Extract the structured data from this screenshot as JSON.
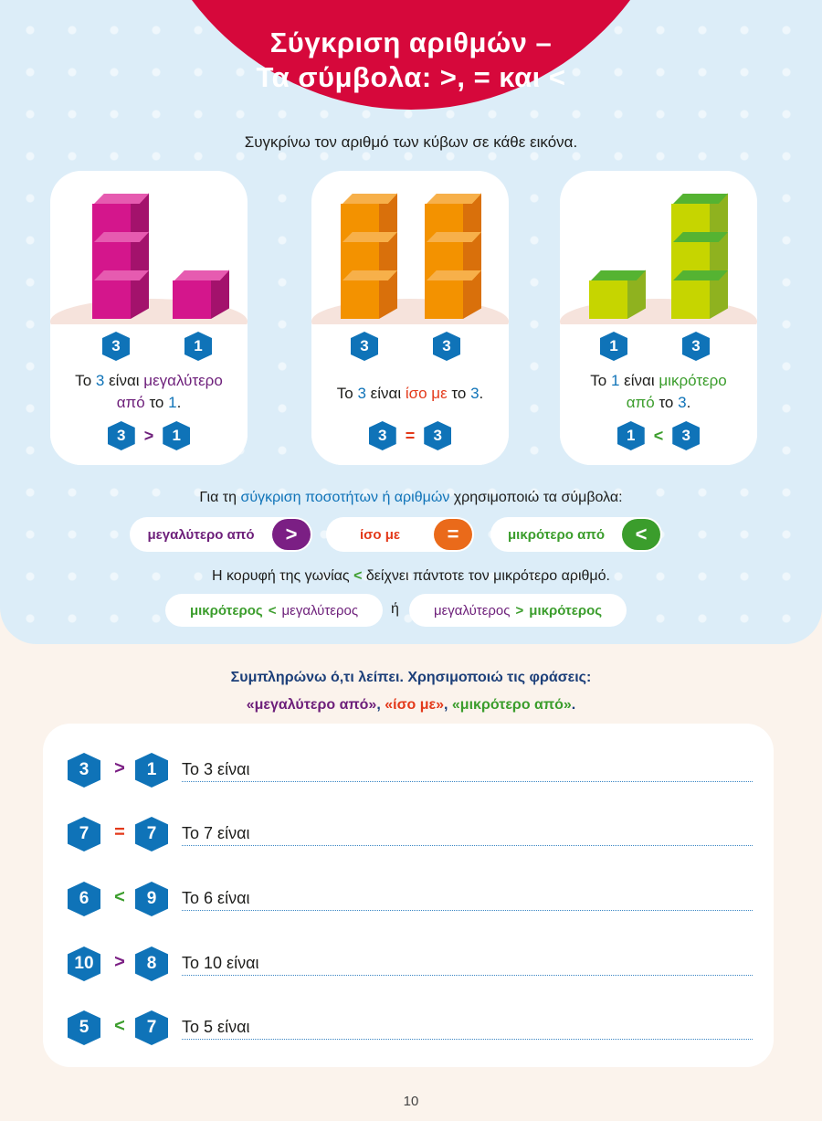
{
  "title": {
    "line1": "Σύγκριση αριθμών –",
    "line2": "Τα σύμβολα: >, = και <"
  },
  "intro": "Συγκρίνω τον αριθμό των κύβων σε κάθε εικόνα.",
  "cards": [
    {
      "left": "3",
      "right": "1",
      "pre": "Το",
      "a": "3",
      "mid": "είναι",
      "phrase": "μεγαλύτερο",
      "phrase2": "από",
      "post": "το",
      "b": "1",
      "end": ".",
      "op": ">"
    },
    {
      "left": "3",
      "right": "3",
      "pre": "Το",
      "a": "3",
      "mid": "είναι",
      "phrase": "ίσο με",
      "post": "το",
      "b": "3",
      "end": ".",
      "op": "="
    },
    {
      "left": "1",
      "right": "3",
      "pre": "Το",
      "a": "1",
      "mid": "είναι",
      "phrase": "μικρότερο",
      "phrase2": "από",
      "post": "το",
      "b": "3",
      "end": ".",
      "op": "<"
    }
  ],
  "usage": {
    "pre": "Για τη",
    "highlight": "σύγκριση ποσοτήτων ή αριθμών",
    "post": "χρησιμοποιώ τα σύμβολα:"
  },
  "symbols": [
    {
      "label": "μεγαλύτερο από",
      "sym": ">",
      "color": "#7b1f84"
    },
    {
      "label": "ίσο με",
      "sym": "=",
      "color": "#ea6a1a"
    },
    {
      "label": "μικρότερο από",
      "sym": "<",
      "color": "#3b9d2c"
    }
  ],
  "note": {
    "pre": "Η κορυφή της γωνίας",
    "sym": "<",
    "post": "δείχνει πάντοτε τον μικρότερο αριθμό."
  },
  "pair1": {
    "a": "μικρότερος",
    "sym": "<",
    "b": "μεγαλύτερος"
  },
  "or": "ή",
  "pair2": {
    "a": "μεγαλύτερος",
    "sym": ">",
    "b": "μικρότερος"
  },
  "instruction": {
    "line1": "Συμπληρώνω ό,τι λείπει. Χρησιμοποιώ τις φράσεις:",
    "q1": "«μεγαλύτερο από»",
    "comma1": ", ",
    "q2": "«ίσο με»",
    "comma2": ", ",
    "q3": "«μικρότερο από»",
    "dot": "."
  },
  "exercises": [
    {
      "a": "3",
      "op": ">",
      "b": "1",
      "text": "Το 3 είναι",
      "color": "#7b1f84"
    },
    {
      "a": "7",
      "op": "=",
      "b": "7",
      "text": "Το 7 είναι",
      "color": "#e3391a"
    },
    {
      "a": "6",
      "op": "<",
      "b": "9",
      "text": "Το 6 είναι",
      "color": "#3b9d2c"
    },
    {
      "a": "10",
      "op": ">",
      "b": "8",
      "text": "Το 10 είναι",
      "color": "#7b1f84"
    },
    {
      "a": "5",
      "op": "<",
      "b": "7",
      "text": "Το 5 είναι",
      "color": "#3b9d2c"
    }
  ],
  "page_number": "10",
  "colors": {
    "magenta": "#d4168c",
    "orange": "#f39200",
    "lime": "#c6d500",
    "blue": "#0f73b8"
  }
}
